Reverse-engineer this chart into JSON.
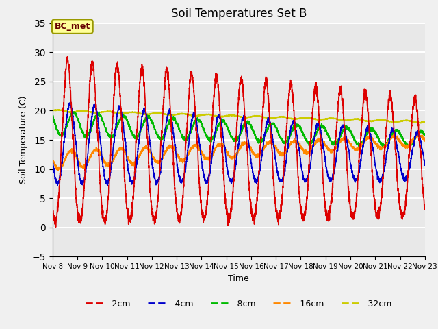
{
  "title": "Soil Temperatures Set B",
  "xlabel": "Time",
  "ylabel": "Soil Temperature (C)",
  "ylim": [
    -5,
    35
  ],
  "xlim_days": [
    8,
    23
  ],
  "annotation": "BC_met",
  "legend_labels": [
    "-2cm",
    "-4cm",
    "-8cm",
    "-16cm",
    "-32cm"
  ],
  "legend_colors": [
    "#dd0000",
    "#0000cc",
    "#00bb00",
    "#ff8800",
    "#cccc00"
  ],
  "line_width": 1.2,
  "bg_color": "#e8e8e8",
  "grid_color": "#ffffff",
  "yticks": [
    -5,
    0,
    5,
    10,
    15,
    20,
    25,
    30,
    35
  ],
  "xtick_labels": [
    "Nov 8",
    "Nov 9",
    "Nov 10",
    "Nov 11",
    "Nov 12",
    "Nov 13",
    "Nov 14",
    "Nov 15",
    "Nov 16",
    "Nov 17",
    "Nov 18",
    "Nov 19",
    "Nov 20",
    "Nov 21",
    "Nov 22",
    "Nov 23"
  ],
  "fig_width": 6.4,
  "fig_height": 4.8,
  "dpi": 100
}
